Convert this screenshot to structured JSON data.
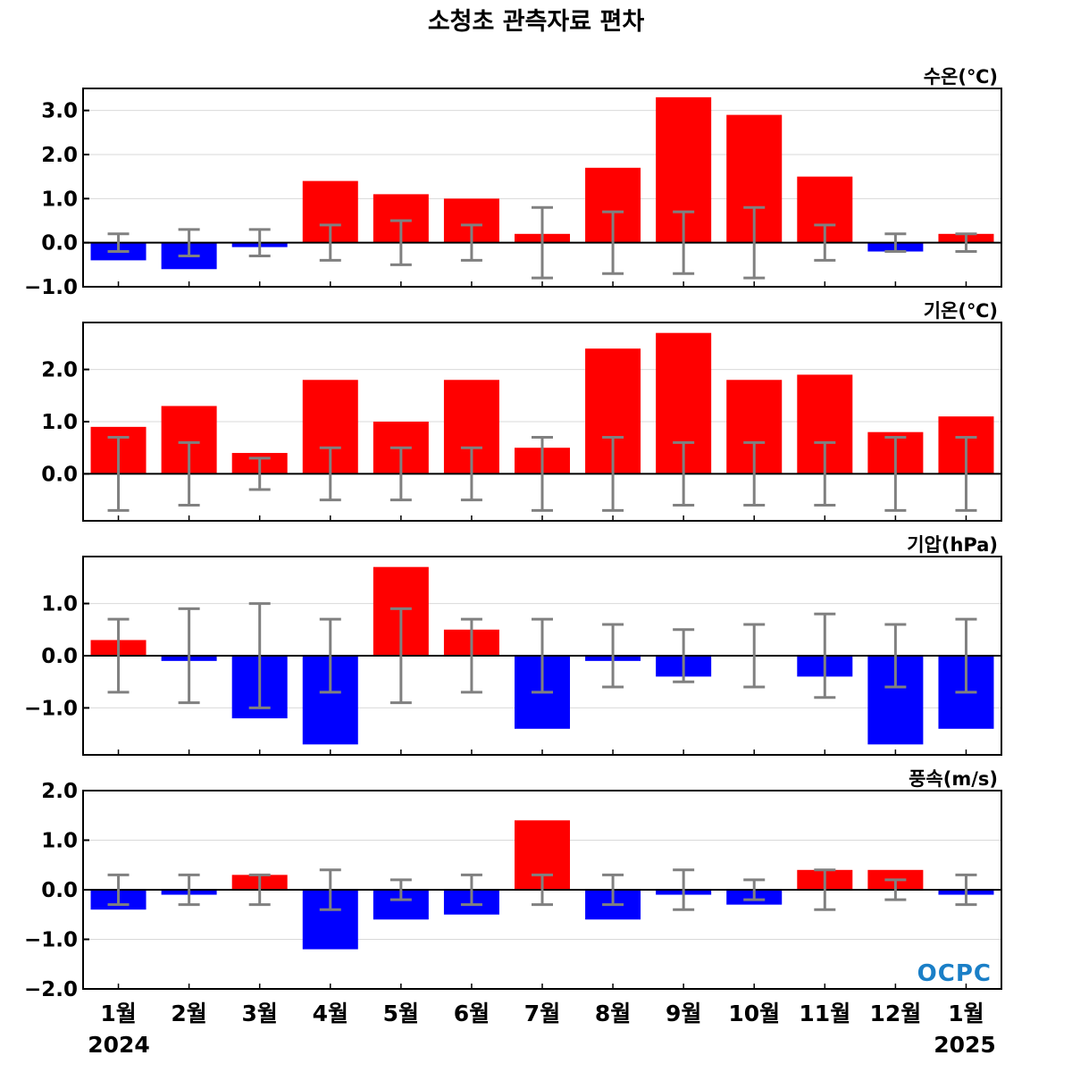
{
  "chart_data": {
    "type": "bar",
    "title": "소청초 관측자료 편차",
    "categories": [
      "1월",
      "2월",
      "3월",
      "4월",
      "5월",
      "6월",
      "7월",
      "8월",
      "9월",
      "10월",
      "11월",
      "12월",
      "1월"
    ],
    "year_labels": {
      "start": "2024",
      "end": "2025"
    },
    "colors": {
      "positive": "#ff0000",
      "negative": "#0000ff",
      "error_bar": "#808080",
      "grid": "#d9d9d9"
    },
    "logo_text": "OCPC",
    "panels": [
      {
        "unit": "수온(℃)",
        "ylim": [
          -1.0,
          3.5
        ],
        "yticks": [
          -1.0,
          0.0,
          1.0,
          2.0,
          3.0
        ],
        "ytick_labels": [
          "−1.0",
          "0.0",
          "1.0",
          "2.0",
          "3.0"
        ],
        "values": [
          -0.4,
          -0.6,
          -0.1,
          1.4,
          1.1,
          1.0,
          0.2,
          1.7,
          3.3,
          2.9,
          1.5,
          -0.2,
          0.2
        ],
        "error": [
          0.2,
          0.3,
          0.3,
          0.4,
          0.5,
          0.4,
          0.8,
          0.7,
          0.7,
          0.8,
          0.4,
          0.2,
          0.2
        ]
      },
      {
        "unit": "기온(℃)",
        "ylim": [
          -0.9,
          2.9
        ],
        "yticks": [
          0.0,
          1.0,
          2.0
        ],
        "ytick_labels": [
          "0.0",
          "1.0",
          "2.0"
        ],
        "values": [
          0.9,
          1.3,
          0.4,
          1.8,
          1.0,
          1.8,
          0.5,
          2.4,
          2.7,
          1.8,
          1.9,
          0.8,
          1.1
        ],
        "error": [
          0.7,
          0.6,
          0.3,
          0.5,
          0.5,
          0.5,
          0.7,
          0.7,
          0.6,
          0.6,
          0.6,
          0.7,
          0.7
        ]
      },
      {
        "unit": "기압(hPa)",
        "ylim": [
          -1.9,
          1.9
        ],
        "yticks": [
          -1.0,
          0.0,
          1.0
        ],
        "ytick_labels": [
          "−1.0",
          "0.0",
          "1.0"
        ],
        "values": [
          0.3,
          -0.1,
          -1.2,
          -1.7,
          1.7,
          0.5,
          -1.4,
          -0.1,
          -0.4,
          0.0,
          -0.4,
          -1.7,
          -1.4
        ],
        "error": [
          0.7,
          0.9,
          1.0,
          0.7,
          0.9,
          0.7,
          0.7,
          0.6,
          0.5,
          0.6,
          0.8,
          0.6,
          0.7
        ]
      },
      {
        "unit": "풍속(m/s)",
        "ylim": [
          -2.0,
          2.0
        ],
        "yticks": [
          -2.0,
          -1.0,
          0.0,
          1.0,
          2.0
        ],
        "ytick_labels": [
          "−2.0",
          "−1.0",
          "0.0",
          "1.0",
          "2.0"
        ],
        "values": [
          -0.4,
          -0.1,
          0.3,
          -1.2,
          -0.6,
          -0.5,
          1.4,
          -0.6,
          -0.1,
          -0.3,
          0.4,
          0.4,
          -0.1
        ],
        "error": [
          0.3,
          0.3,
          0.3,
          0.4,
          0.2,
          0.3,
          0.3,
          0.3,
          0.4,
          0.2,
          0.4,
          0.2,
          0.3
        ]
      }
    ]
  }
}
